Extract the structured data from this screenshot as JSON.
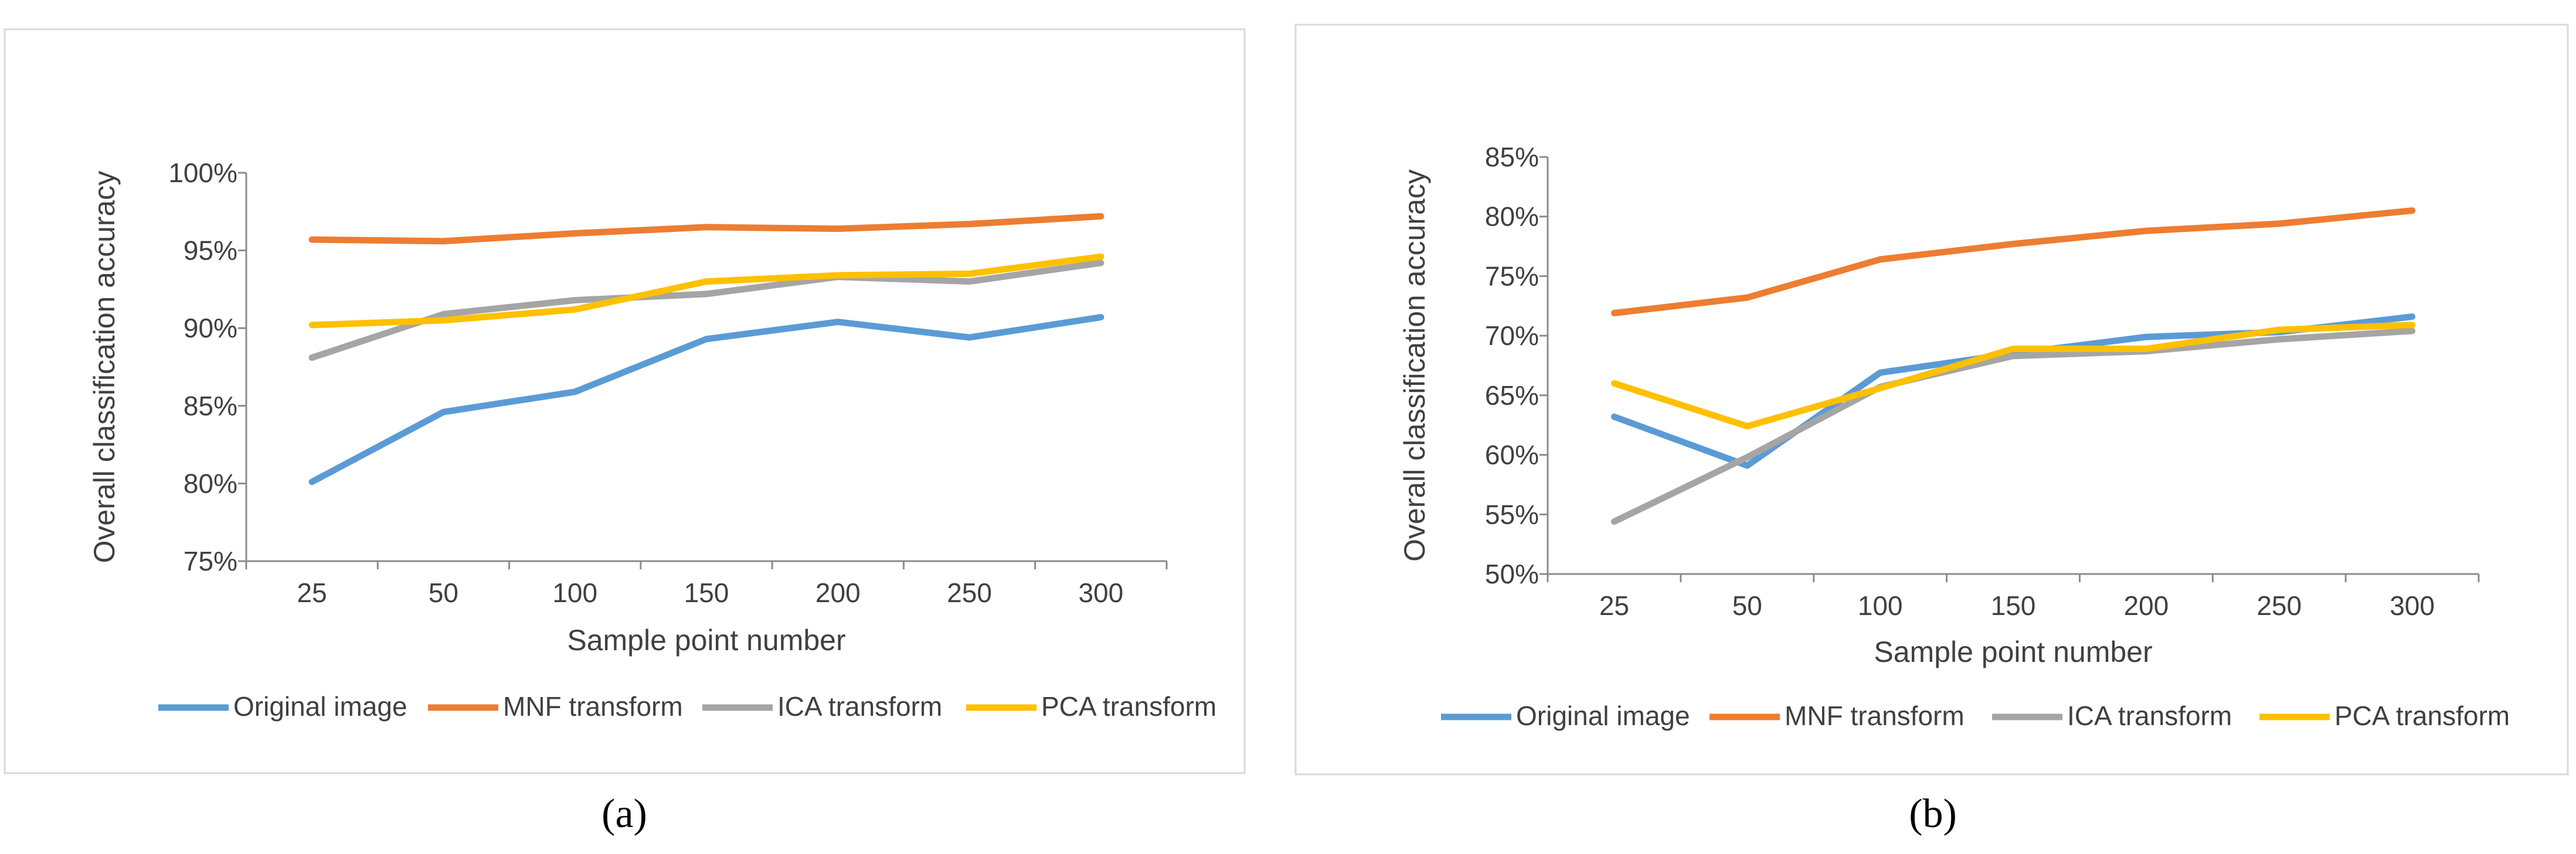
{
  "chart_data": [
    {
      "type": "line",
      "panel_label": "a",
      "xlabel": "Sample point number",
      "ylabel": "Overall classification accuracy",
      "categories": [
        "25",
        "50",
        "100",
        "150",
        "200",
        "250",
        "300"
      ],
      "ylim": [
        75,
        100
      ],
      "yticks": [
        75,
        80,
        85,
        90,
        95,
        100
      ],
      "ytick_labels": [
        "75%",
        "80%",
        "85%",
        "90%",
        "95%",
        "100%"
      ],
      "legend_position": "bottom",
      "grid": false,
      "series": [
        {
          "name": "Original image",
          "color": "#5B9BD5",
          "values": [
            80.1,
            84.6,
            85.9,
            89.3,
            90.4,
            89.4,
            90.7
          ]
        },
        {
          "name": "MNF transform",
          "color": "#ED7D31",
          "values": [
            95.7,
            95.6,
            96.1,
            96.5,
            96.4,
            96.7,
            97.2
          ]
        },
        {
          "name": "ICA  transform",
          "color": "#A5A5A5",
          "values": [
            88.1,
            90.9,
            91.8,
            92.2,
            93.3,
            93.0,
            94.2
          ]
        },
        {
          "name": "PCA  transform",
          "color": "#FFC000",
          "values": [
            90.2,
            90.5,
            91.2,
            93.0,
            93.4,
            93.5,
            94.6
          ]
        }
      ]
    },
    {
      "type": "line",
      "panel_label": "b",
      "xlabel": "Sample point number",
      "ylabel": "Overall classification accuracy",
      "categories": [
        "25",
        "50",
        "100",
        "150",
        "200",
        "250",
        "300"
      ],
      "ylim": [
        50,
        85
      ],
      "yticks": [
        50,
        55,
        60,
        65,
        70,
        75,
        80,
        85
      ],
      "ytick_labels": [
        "50%",
        "55%",
        "60%",
        "65%",
        "70%",
        "75%",
        "80%",
        "85%"
      ],
      "legend_position": "bottom",
      "grid": false,
      "series": [
        {
          "name": "Original image",
          "color": "#5B9BD5",
          "values": [
            63.2,
            59.1,
            66.9,
            68.5,
            69.9,
            70.3,
            71.6
          ]
        },
        {
          "name": "MNF transform",
          "color": "#ED7D31",
          "values": [
            71.9,
            73.2,
            76.4,
            77.7,
            78.8,
            79.4,
            80.5
          ]
        },
        {
          "name": "ICA  transform",
          "color": "#A5A5A5",
          "values": [
            54.4,
            59.8,
            65.7,
            68.3,
            68.7,
            69.7,
            70.4
          ]
        },
        {
          "name": "PCA  transform",
          "color": "#FFC000",
          "values": [
            66.0,
            62.4,
            65.6,
            68.9,
            68.9,
            70.5,
            70.9
          ]
        }
      ]
    }
  ],
  "panel_labels": [
    "(a)",
    "(b)"
  ]
}
